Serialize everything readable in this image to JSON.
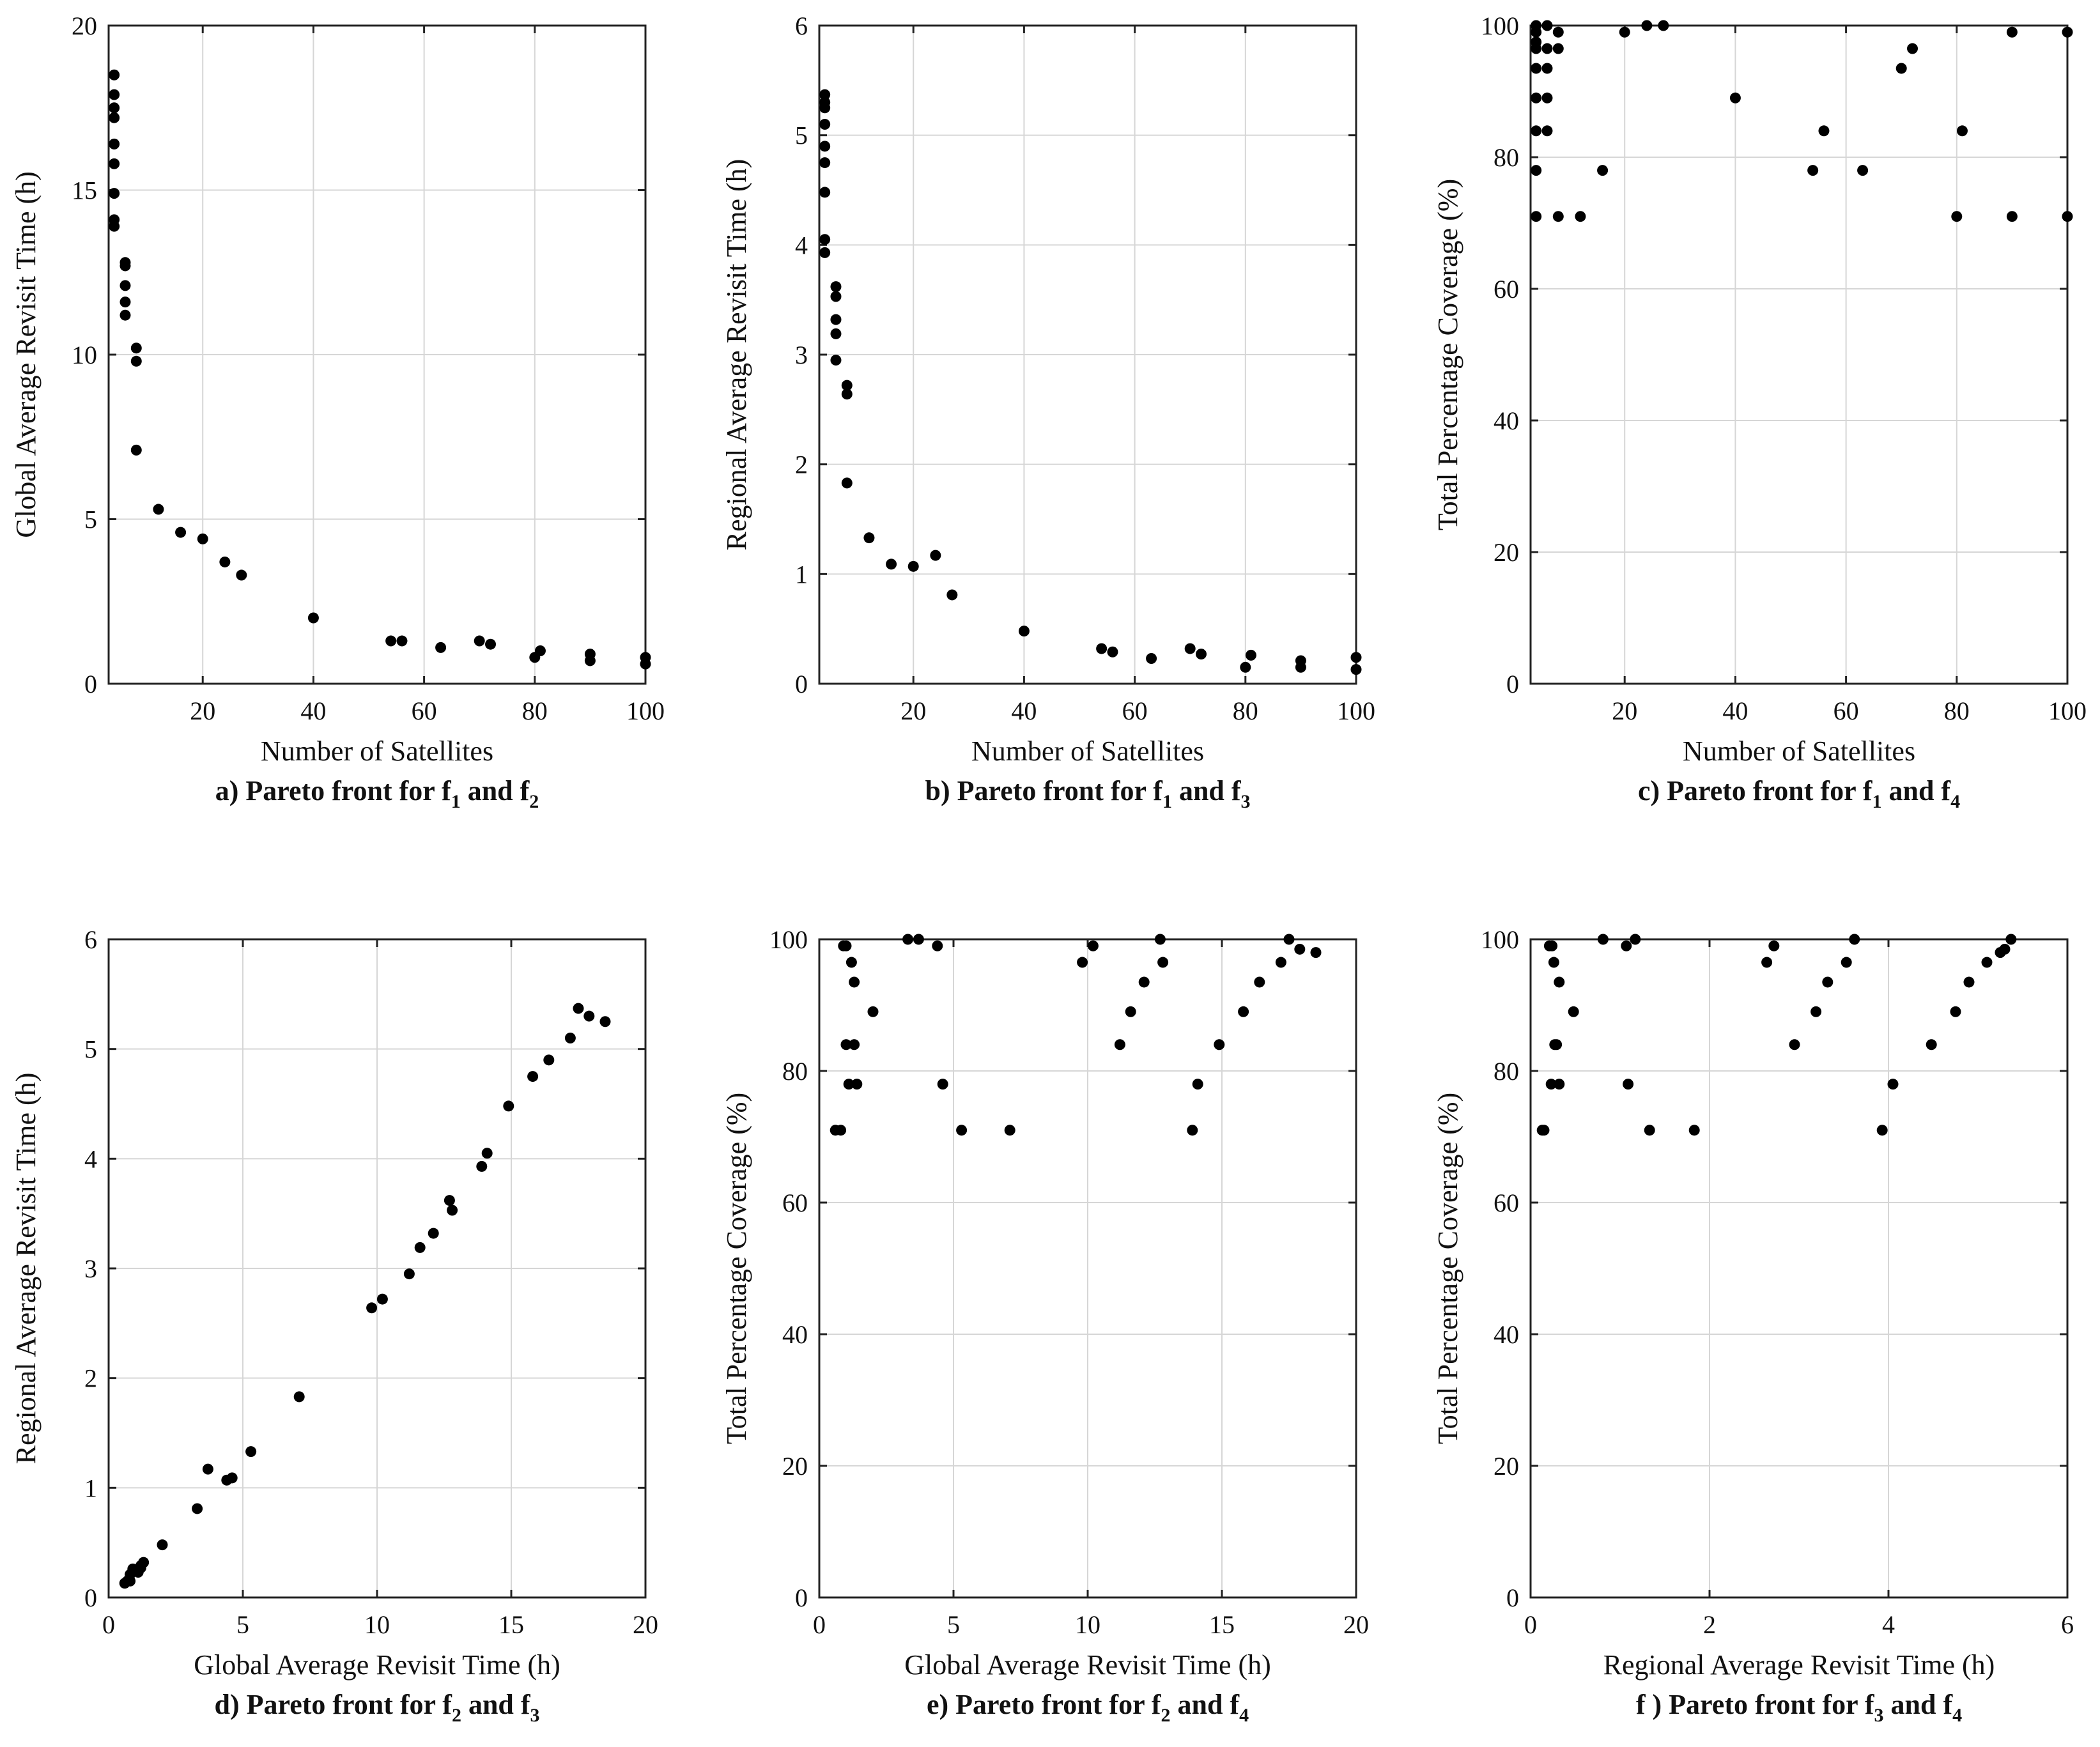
{
  "chart_data": [
    {
      "id": "a",
      "type": "scatter",
      "xlabel": "Number of Satellites",
      "ylabel": "Global Average Revisit Time (h)",
      "caption": {
        "prefix": "a) Pareto front for f",
        "s1": "1",
        "mid": " and f",
        "s2": "2"
      },
      "xlim": [
        3,
        100
      ],
      "ylim": [
        0,
        20
      ],
      "xticks": [
        20,
        40,
        60,
        80,
        100
      ],
      "yticks": [
        0,
        5,
        10,
        15,
        20
      ],
      "grid": true,
      "points": [
        [
          4,
          18.5
        ],
        [
          4,
          17.9
        ],
        [
          4,
          17.5
        ],
        [
          4,
          17.2
        ],
        [
          4,
          16.4
        ],
        [
          4,
          15.8
        ],
        [
          4,
          14.9
        ],
        [
          4,
          14.1
        ],
        [
          4,
          13.9
        ],
        [
          6,
          12.8
        ],
        [
          6,
          12.7
        ],
        [
          6,
          12.1
        ],
        [
          6,
          11.6
        ],
        [
          6,
          11.2
        ],
        [
          8,
          10.2
        ],
        [
          8,
          9.8
        ],
        [
          8,
          7.1
        ],
        [
          12,
          5.3
        ],
        [
          16,
          4.6
        ],
        [
          20,
          4.4
        ],
        [
          24,
          3.7
        ],
        [
          27,
          3.3
        ],
        [
          40,
          2.0
        ],
        [
          54,
          1.3
        ],
        [
          56,
          1.3
        ],
        [
          63,
          1.1
        ],
        [
          70,
          1.3
        ],
        [
          72,
          1.2
        ],
        [
          80,
          0.8
        ],
        [
          81,
          1.0
        ],
        [
          90,
          0.9
        ],
        [
          90,
          0.7
        ],
        [
          100,
          0.8
        ],
        [
          100,
          0.6
        ]
      ]
    },
    {
      "id": "b",
      "type": "scatter",
      "xlabel": "Number of Satellites",
      "ylabel": "Regional Average Revisit Time (h)",
      "caption": {
        "prefix": "b) Pareto front for f",
        "s1": "1",
        "mid": " and f",
        "s2": "3"
      },
      "xlim": [
        3,
        100
      ],
      "ylim": [
        0,
        6
      ],
      "xticks": [
        20,
        40,
        60,
        80,
        100
      ],
      "yticks": [
        0,
        1,
        2,
        3,
        4,
        5,
        6
      ],
      "grid": true,
      "points": [
        [
          4,
          5.37
        ],
        [
          4,
          5.3
        ],
        [
          4,
          5.25
        ],
        [
          4,
          5.1
        ],
        [
          4,
          4.9
        ],
        [
          4,
          4.75
        ],
        [
          4,
          4.48
        ],
        [
          4,
          4.05
        ],
        [
          4,
          3.93
        ],
        [
          6,
          3.62
        ],
        [
          6,
          3.53
        ],
        [
          6,
          3.32
        ],
        [
          6,
          3.19
        ],
        [
          6,
          2.95
        ],
        [
          8,
          2.72
        ],
        [
          8,
          2.64
        ],
        [
          8,
          1.83
        ],
        [
          12,
          1.33
        ],
        [
          16,
          1.09
        ],
        [
          20,
          1.07
        ],
        [
          24,
          1.17
        ],
        [
          27,
          0.81
        ],
        [
          40,
          0.48
        ],
        [
          54,
          0.32
        ],
        [
          56,
          0.29
        ],
        [
          63,
          0.23
        ],
        [
          70,
          0.32
        ],
        [
          72,
          0.27
        ],
        [
          80,
          0.15
        ],
        [
          81,
          0.26
        ],
        [
          90,
          0.21
        ],
        [
          90,
          0.15
        ],
        [
          100,
          0.24
        ],
        [
          100,
          0.13
        ]
      ]
    },
    {
      "id": "c",
      "type": "scatter",
      "xlabel": "Number of Satellites",
      "ylabel": "Total Percentage Coverage (%)",
      "caption": {
        "prefix": "c) Pareto front for f",
        "s1": "1",
        "mid": " and f",
        "s2": "4"
      },
      "xlim": [
        3,
        100
      ],
      "ylim": [
        0,
        100
      ],
      "xticks": [
        20,
        40,
        60,
        80,
        100
      ],
      "yticks": [
        0,
        20,
        40,
        60,
        80,
        100
      ],
      "grid": true,
      "points": [
        [
          4,
          100
        ],
        [
          4,
          99
        ],
        [
          4,
          97.5
        ],
        [
          4,
          96.5
        ],
        [
          4,
          93.5
        ],
        [
          4,
          89
        ],
        [
          4,
          84
        ],
        [
          4,
          78
        ],
        [
          4,
          71
        ],
        [
          6,
          100
        ],
        [
          6,
          96.5
        ],
        [
          6,
          93.5
        ],
        [
          6,
          89
        ],
        [
          6,
          84
        ],
        [
          8,
          99
        ],
        [
          8,
          96.5
        ],
        [
          8,
          71
        ],
        [
          12,
          71
        ],
        [
          16,
          78
        ],
        [
          20,
          99
        ],
        [
          24,
          100
        ],
        [
          27,
          100
        ],
        [
          40,
          89
        ],
        [
          54,
          78
        ],
        [
          56,
          84
        ],
        [
          63,
          78
        ],
        [
          70,
          93.5
        ],
        [
          72,
          96.5
        ],
        [
          80,
          71
        ],
        [
          81,
          84
        ],
        [
          90,
          99
        ],
        [
          90,
          71
        ],
        [
          100,
          99
        ],
        [
          100,
          71
        ]
      ]
    },
    {
      "id": "d",
      "type": "scatter",
      "xlabel": "Global Average Revisit Time (h)",
      "ylabel": "Regional Average Revisit Time (h)",
      "caption": {
        "prefix": "d) Pareto front for f",
        "s1": "2",
        "mid": " and f",
        "s2": "3"
      },
      "xlim": [
        0,
        20
      ],
      "ylim": [
        0,
        6
      ],
      "xticks": [
        0,
        5,
        10,
        15,
        20
      ],
      "yticks": [
        0,
        1,
        2,
        3,
        4,
        5,
        6
      ],
      "grid": true,
      "points": [
        [
          0.6,
          0.13
        ],
        [
          0.7,
          0.15
        ],
        [
          0.8,
          0.21
        ],
        [
          0.8,
          0.15
        ],
        [
          0.9,
          0.26
        ],
        [
          1.0,
          0.24
        ],
        [
          1.1,
          0.23
        ],
        [
          1.2,
          0.29
        ],
        [
          1.3,
          0.32
        ],
        [
          1.2,
          0.27
        ],
        [
          2.0,
          0.48
        ],
        [
          3.3,
          0.81
        ],
        [
          3.7,
          1.17
        ],
        [
          4.4,
          1.07
        ],
        [
          4.6,
          1.09
        ],
        [
          5.3,
          1.33
        ],
        [
          7.1,
          1.83
        ],
        [
          9.8,
          2.64
        ],
        [
          10.2,
          2.72
        ],
        [
          11.2,
          2.95
        ],
        [
          11.6,
          3.19
        ],
        [
          12.1,
          3.32
        ],
        [
          12.7,
          3.62
        ],
        [
          12.8,
          3.53
        ],
        [
          13.9,
          3.93
        ],
        [
          14.1,
          4.05
        ],
        [
          14.9,
          4.48
        ],
        [
          15.8,
          4.75
        ],
        [
          16.4,
          4.9
        ],
        [
          17.2,
          5.1
        ],
        [
          17.5,
          5.37
        ],
        [
          17.9,
          5.3
        ],
        [
          18.5,
          5.25
        ]
      ]
    },
    {
      "id": "e",
      "type": "scatter",
      "xlabel": "Global Average Revisit Time (h)",
      "ylabel": "Total Percentage Coverage (%)",
      "caption": {
        "prefix": "e) Pareto front for f",
        "s1": "2",
        "mid": " and f",
        "s2": "4"
      },
      "xlim": [
        0,
        20
      ],
      "ylim": [
        0,
        100
      ],
      "xticks": [
        0,
        5,
        10,
        15,
        20
      ],
      "yticks": [
        0,
        20,
        40,
        60,
        80,
        100
      ],
      "grid": true,
      "points": [
        [
          0.6,
          71
        ],
        [
          0.8,
          71
        ],
        [
          0.9,
          99
        ],
        [
          1.0,
          99
        ],
        [
          1.0,
          84
        ],
        [
          1.1,
          78
        ],
        [
          1.2,
          96.5
        ],
        [
          1.3,
          93.5
        ],
        [
          1.3,
          84
        ],
        [
          1.4,
          78
        ],
        [
          2.0,
          89
        ],
        [
          3.3,
          100
        ],
        [
          3.7,
          100
        ],
        [
          4.4,
          99
        ],
        [
          4.6,
          78
        ],
        [
          5.3,
          71
        ],
        [
          7.1,
          71
        ],
        [
          9.8,
          96.5
        ],
        [
          10.2,
          99
        ],
        [
          11.2,
          84
        ],
        [
          11.6,
          89
        ],
        [
          12.1,
          93.5
        ],
        [
          12.7,
          100
        ],
        [
          12.8,
          96.5
        ],
        [
          13.9,
          71
        ],
        [
          14.1,
          78
        ],
        [
          14.9,
          84
        ],
        [
          15.8,
          89
        ],
        [
          16.4,
          93.5
        ],
        [
          17.2,
          96.5
        ],
        [
          17.5,
          100
        ],
        [
          17.9,
          98.5
        ],
        [
          18.5,
          98
        ]
      ]
    },
    {
      "id": "f",
      "type": "scatter",
      "xlabel": "Regional Average Revisit Time (h)",
      "ylabel": "Total Percentage Coverage (%)",
      "caption": {
        "prefix": "f ) Pareto front for f",
        "s1": "3",
        "mid": " and f",
        "s2": "4"
      },
      "xlim": [
        0,
        6
      ],
      "ylim": [
        0,
        100
      ],
      "xticks": [
        0,
        2,
        4,
        6
      ],
      "yticks": [
        0,
        20,
        40,
        60,
        80,
        100
      ],
      "grid": true,
      "points": [
        [
          0.13,
          71
        ],
        [
          0.15,
          71
        ],
        [
          0.21,
          99
        ],
        [
          0.24,
          99
        ],
        [
          0.26,
          96.5
        ],
        [
          0.23,
          78
        ],
        [
          0.29,
          84
        ],
        [
          0.32,
          93.5
        ],
        [
          0.27,
          84
        ],
        [
          0.32,
          78
        ],
        [
          0.48,
          89
        ],
        [
          0.81,
          100
        ],
        [
          1.07,
          99
        ],
        [
          1.09,
          78
        ],
        [
          1.17,
          100
        ],
        [
          1.33,
          71
        ],
        [
          1.83,
          71
        ],
        [
          2.64,
          96.5
        ],
        [
          2.72,
          99
        ],
        [
          2.95,
          84
        ],
        [
          3.19,
          89
        ],
        [
          3.32,
          93.5
        ],
        [
          3.53,
          96.5
        ],
        [
          3.62,
          100
        ],
        [
          3.93,
          71
        ],
        [
          4.05,
          78
        ],
        [
          4.48,
          84
        ],
        [
          4.75,
          89
        ],
        [
          4.9,
          93.5
        ],
        [
          5.1,
          96.5
        ],
        [
          5.25,
          98
        ],
        [
          5.3,
          98.5
        ],
        [
          5.37,
          100
        ]
      ]
    }
  ]
}
